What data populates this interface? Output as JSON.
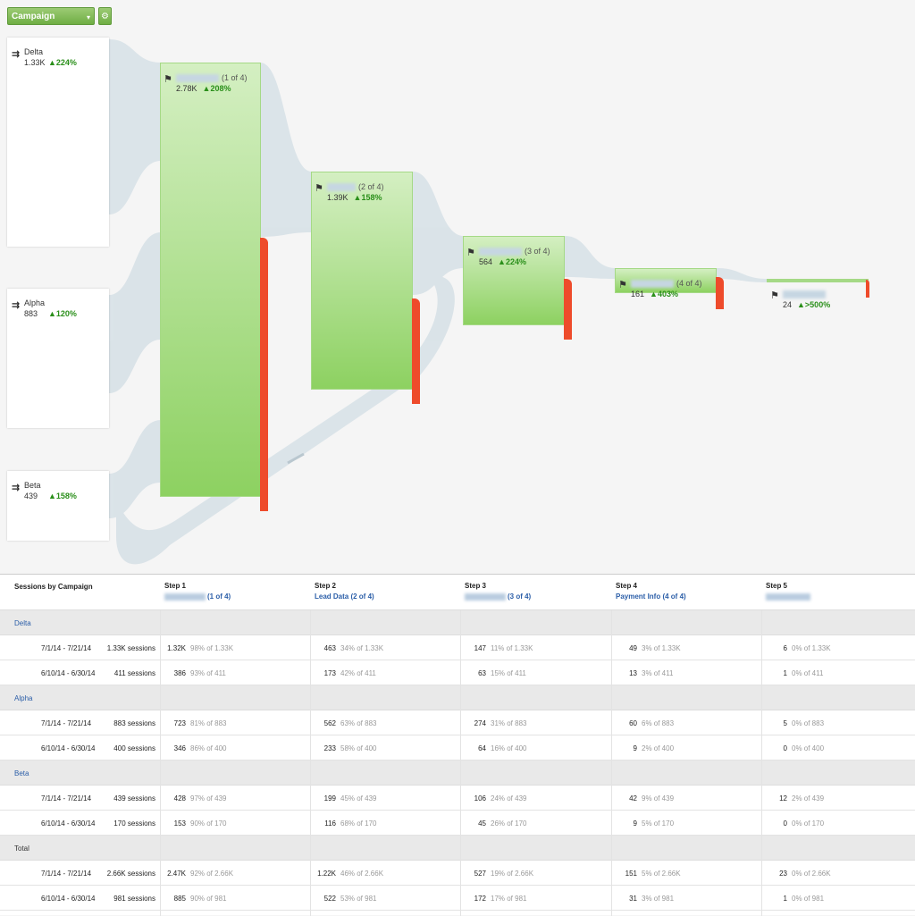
{
  "controls": {
    "dimension_label": "Campaign",
    "dimension_caret": "▾",
    "gear_glyph": "⚙"
  },
  "sources": [
    {
      "name": "Delta",
      "value": "1.33K",
      "change": "▲224%"
    },
    {
      "name": "Alpha",
      "value": "883",
      "change": "▲120%"
    },
    {
      "name": "Beta",
      "value": "439",
      "change": "▲158%"
    }
  ],
  "steps": [
    {
      "position": "(1 of 4)",
      "value": "2.78K",
      "change": "▲208%"
    },
    {
      "position": "(2 of 4)",
      "value": "1.39K",
      "change": "▲158%"
    },
    {
      "position": "(3 of 4)",
      "value": "564",
      "change": "▲224%"
    },
    {
      "position": "(4 of 4)",
      "value": "161",
      "change": "▲403%"
    },
    {
      "position": "",
      "value": "24",
      "change": "▲>500%"
    }
  ],
  "icons": {
    "source_arrow": "source-arrow-icon",
    "step_flag": "flag-icon",
    "settings": "gear-icon"
  },
  "colors": {
    "accent_green": "#7dbf4f",
    "drop_red": "#ee4b2b",
    "link_blue": "#2b5ea8",
    "positive": "#2a8f1a"
  },
  "table": {
    "title": "Sessions by Campaign",
    "step_headers": [
      {
        "step": "Step 1",
        "name": "(1 of 4)"
      },
      {
        "step": "Step 2",
        "name": "Lead Data (2 of 4)"
      },
      {
        "step": "Step 3",
        "name": "(3 of 4)"
      },
      {
        "step": "Step 4",
        "name": "Payment Info (4 of 4)"
      },
      {
        "step": "Step 5",
        "name": ""
      }
    ],
    "groups": [
      {
        "name": "Delta",
        "rows": [
          {
            "date": "7/1/14 - 7/21/14",
            "sessions": "1.33K sessions",
            "cells": [
              [
                "1.32K",
                "98% of 1.33K"
              ],
              [
                "463",
                "34% of 1.33K"
              ],
              [
                "147",
                "11% of 1.33K"
              ],
              [
                "49",
                "3% of 1.33K"
              ],
              [
                "6",
                "0% of 1.33K"
              ]
            ]
          },
          {
            "date": "6/10/14 - 6/30/14",
            "sessions": "411 sessions",
            "cells": [
              [
                "386",
                "93% of 411"
              ],
              [
                "173",
                "42% of 411"
              ],
              [
                "63",
                "15% of 411"
              ],
              [
                "13",
                "3% of 411"
              ],
              [
                "1",
                "0% of 411"
              ]
            ]
          }
        ]
      },
      {
        "name": "Alpha",
        "rows": [
          {
            "date": "7/1/14 - 7/21/14",
            "sessions": "883 sessions",
            "cells": [
              [
                "723",
                "81% of 883"
              ],
              [
                "562",
                "63% of 883"
              ],
              [
                "274",
                "31% of 883"
              ],
              [
                "60",
                "6% of 883"
              ],
              [
                "5",
                "0% of 883"
              ]
            ]
          },
          {
            "date": "6/10/14 - 6/30/14",
            "sessions": "400 sessions",
            "cells": [
              [
                "346",
                "86% of 400"
              ],
              [
                "233",
                "58% of 400"
              ],
              [
                "64",
                "16% of 400"
              ],
              [
                "9",
                "2% of 400"
              ],
              [
                "0",
                "0% of 400"
              ]
            ]
          }
        ]
      },
      {
        "name": "Beta",
        "rows": [
          {
            "date": "7/1/14 - 7/21/14",
            "sessions": "439 sessions",
            "cells": [
              [
                "428",
                "97% of 439"
              ],
              [
                "199",
                "45% of 439"
              ],
              [
                "106",
                "24% of 439"
              ],
              [
                "42",
                "9% of 439"
              ],
              [
                "12",
                "2% of 439"
              ]
            ]
          },
          {
            "date": "6/10/14 - 6/30/14",
            "sessions": "170 sessions",
            "cells": [
              [
                "153",
                "90% of 170"
              ],
              [
                "116",
                "68% of 170"
              ],
              [
                "45",
                "26% of 170"
              ],
              [
                "9",
                "5% of 170"
              ],
              [
                "0",
                "0% of 170"
              ]
            ]
          }
        ]
      },
      {
        "name": "Total",
        "rows": [
          {
            "date": "7/1/14 - 7/21/14",
            "sessions": "2.66K sessions",
            "cells": [
              [
                "2.47K",
                "92% of 2.66K"
              ],
              [
                "1.22K",
                "46% of 2.66K"
              ],
              [
                "527",
                "19% of 2.66K"
              ],
              [
                "151",
                "5% of 2.66K"
              ],
              [
                "23",
                "0% of 2.66K"
              ]
            ]
          },
          {
            "date": "6/10/14 - 6/30/14",
            "sessions": "981 sessions",
            "cells": [
              [
                "885",
                "90% of 981"
              ],
              [
                "522",
                "53% of 981"
              ],
              [
                "172",
                "17% of 981"
              ],
              [
                "31",
                "3% of 981"
              ],
              [
                "1",
                "0% of 981"
              ]
            ]
          }
        ]
      }
    ]
  }
}
